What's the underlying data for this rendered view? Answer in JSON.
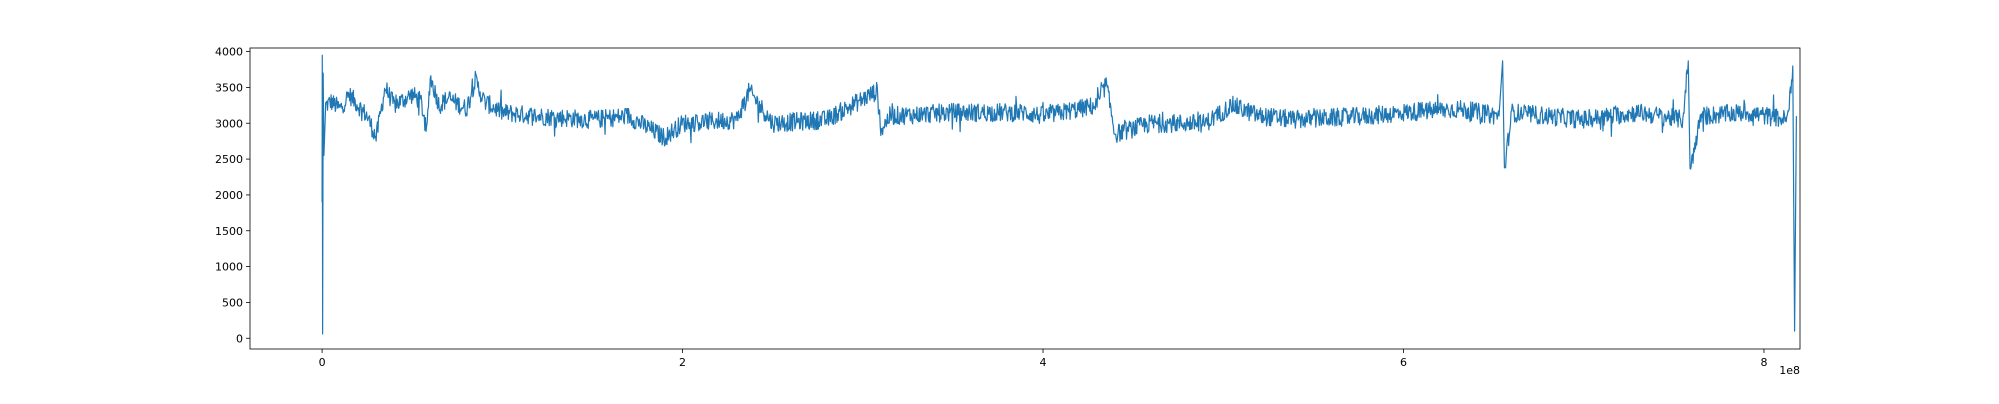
{
  "chart_data": {
    "type": "line",
    "title": "",
    "xlabel": "",
    "ylabel": "",
    "x_offset_text": "1e8",
    "xlim": [
      -0.4,
      8.2
    ],
    "ylim": [
      -150,
      4050
    ],
    "x_ticks": [
      0,
      2,
      4,
      6,
      8
    ],
    "x_tick_labels": [
      "0",
      "2",
      "4",
      "6",
      "8"
    ],
    "y_ticks": [
      0,
      500,
      1000,
      1500,
      2000,
      2500,
      3000,
      3500,
      4000
    ],
    "y_tick_labels": [
      "0",
      "500",
      "1000",
      "1500",
      "2000",
      "2500",
      "3000",
      "3500",
      "4000"
    ],
    "grid": false,
    "legend": "none",
    "line_color": "#1f77b4",
    "series": [
      {
        "x_range": [
          0,
          8.2
        ],
        "points": [
          [
            0,
            1900
          ],
          [
            0.001,
            3950
          ],
          [
            0.003,
            60
          ],
          [
            0.006,
            3700
          ],
          [
            0.01,
            2550
          ],
          [
            0.02,
            3250
          ],
          [
            0.05,
            3300
          ],
          [
            0.1,
            3200
          ],
          [
            0.15,
            3400
          ],
          [
            0.2,
            3250
          ],
          [
            0.25,
            3100
          ],
          [
            0.3,
            2800
          ],
          [
            0.35,
            3500
          ],
          [
            0.4,
            3250
          ],
          [
            0.5,
            3400
          ],
          [
            0.55,
            3300
          ],
          [
            0.58,
            2850
          ],
          [
            0.6,
            3650
          ],
          [
            0.65,
            3250
          ],
          [
            0.7,
            3350
          ],
          [
            0.8,
            3200
          ],
          [
            0.85,
            3600
          ],
          [
            0.9,
            3300
          ],
          [
            1.0,
            3150
          ],
          [
            1.2,
            3100
          ],
          [
            1.5,
            3050
          ],
          [
            1.7,
            3100
          ],
          [
            1.9,
            2800
          ],
          [
            2.0,
            3000
          ],
          [
            2.3,
            3050
          ],
          [
            2.37,
            3450
          ],
          [
            2.5,
            3000
          ],
          [
            2.8,
            3050
          ],
          [
            3.08,
            3450
          ],
          [
            3.1,
            2900
          ],
          [
            3.15,
            3100
          ],
          [
            3.5,
            3150
          ],
          [
            3.9,
            3150
          ],
          [
            4.0,
            3100
          ],
          [
            4.3,
            3250
          ],
          [
            4.35,
            3550
          ],
          [
            4.4,
            2850
          ],
          [
            4.6,
            3000
          ],
          [
            4.9,
            3000
          ],
          [
            5.05,
            3250
          ],
          [
            5.2,
            3100
          ],
          [
            5.4,
            3050
          ],
          [
            5.8,
            3100
          ],
          [
            6.0,
            3150
          ],
          [
            6.3,
            3200
          ],
          [
            6.53,
            3100
          ],
          [
            6.55,
            3870
          ],
          [
            6.56,
            2350
          ],
          [
            6.6,
            3150
          ],
          [
            7.0,
            3050
          ],
          [
            7.3,
            3150
          ],
          [
            7.55,
            3050
          ],
          [
            7.58,
            3870
          ],
          [
            7.59,
            2350
          ],
          [
            7.65,
            3100
          ],
          [
            7.9,
            3150
          ],
          [
            8.13,
            3050
          ],
          [
            8.16,
            3800
          ],
          [
            8.17,
            100
          ],
          [
            8.18,
            3100
          ]
        ]
      }
    ]
  }
}
